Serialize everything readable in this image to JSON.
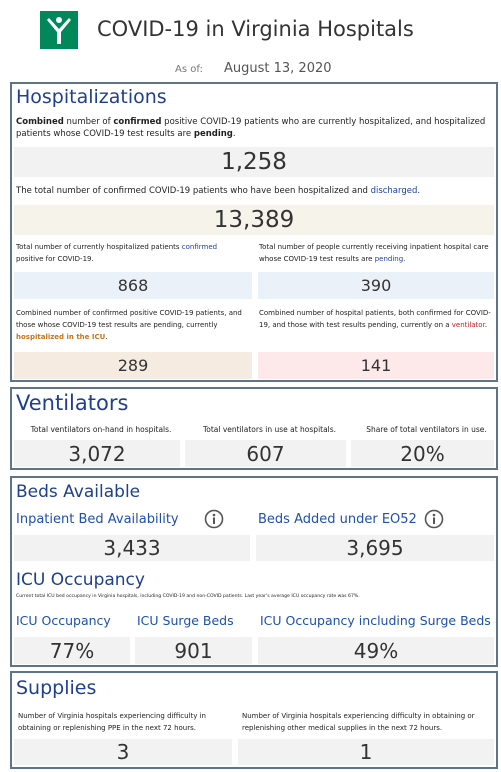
{
  "header": {
    "title": "COVID-19 in Virginia Hospitals",
    "as_of_label": "As of:",
    "date": "August 13, 2020"
  },
  "hospitalizations": {
    "title": "Hospitalizations",
    "current": {
      "description": [
        "Combined",
        " number of ",
        "confirmed",
        " positive COVID-19 patients who are currently hospitalized, and hospitalized patients whose COVID-19 test results are ",
        "pending",
        "."
      ],
      "value": "1,258"
    },
    "total": {
      "description": [
        "The total number of confirmed COVID-19 patients who have been hospitalized and ",
        "discharged",
        "."
      ],
      "value": "13,389"
    },
    "confirmed": {
      "description": [
        "Total number of currently hospitalized patients ",
        "confirmed",
        " positive for COVID-19."
      ],
      "value": "868"
    },
    "pending": {
      "description": [
        "Total number of people currently receiving inpatient hospital care whose COVID-19 test results are ",
        "pending",
        "."
      ],
      "value": "390"
    },
    "icu": {
      "description": [
        "Combined number of confirmed positive COVID-19 patients, and those whose COVID-19 test results are pending, currently ",
        "hospitalized in the ICU",
        "."
      ],
      "value": "289"
    },
    "ventilator": {
      "description": [
        "Combined number of hospital patients, both confirmed for COVID-19, and those with test results pending, currently on a ",
        "ventilator",
        "."
      ],
      "value": "141"
    }
  },
  "ventilators": {
    "title": "Ventilators",
    "items": [
      {
        "label": "Total ventilators on-hand in hospitals.",
        "value": "3,072"
      },
      {
        "label": "Total ventilators in use at hospitals.",
        "value": "607"
      },
      {
        "label": "Share of total ventilators in use.",
        "value": "20%"
      }
    ]
  },
  "beds": {
    "title": "Beds Available",
    "items": [
      {
        "label": "Inpatient Bed Availability",
        "value": "3,433"
      },
      {
        "label": "Beds Added under EO52",
        "value": "3,695"
      }
    ],
    "icu_title": "ICU Occupancy",
    "icu_note": "Current total ICU bed occupancy in Virginia hospitals, including COVID-19 and non-COVID patients. Last year's average ICU occupancy rate was 67%.",
    "icu_items": [
      {
        "label": "ICU Occupancy",
        "value": "77%"
      },
      {
        "label": "ICU Surge Beds",
        "value": "901"
      },
      {
        "label": "ICU Occupancy including Surge Beds",
        "value": "49%"
      }
    ]
  },
  "supplies": {
    "title": "Supplies",
    "items": [
      {
        "label": "Number of Virginia hospitals experiencing difficulty in obtaining or replenishing PPE in the next 72 hours.",
        "value": "3"
      },
      {
        "label": "Number of Virginia hospitals experiencing difficulty in obtaining or replenishing other medical supplies in the next 72 hours.",
        "value": "1"
      }
    ]
  }
}
